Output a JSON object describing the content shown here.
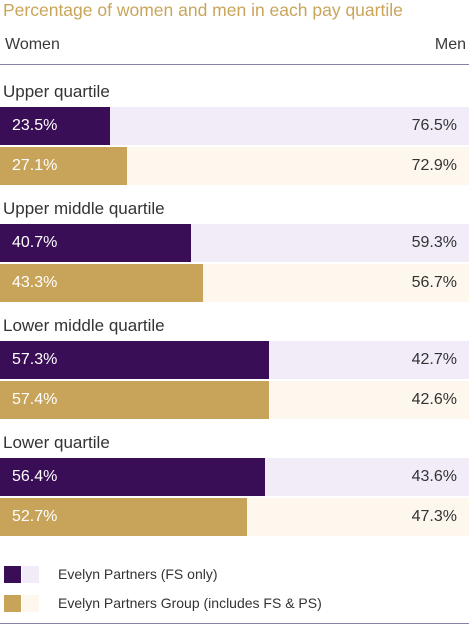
{
  "title": "Percentage of women and men in each pay quartile",
  "headers": {
    "women": "Women",
    "men": "Men"
  },
  "colors": {
    "fs_dark": "#3a0e57",
    "fs_light": "#f2ecf9",
    "group_dark": "#c8a35a",
    "group_light": "#fdf7ee",
    "title": "#c9a55a"
  },
  "chart_data": {
    "type": "bar",
    "orientation": "horizontal-stacked-100",
    "title": "Percentage of women and men in each pay quartile",
    "categories": [
      "Upper quartile",
      "Upper middle quartile",
      "Lower middle quartile",
      "Lower quartile"
    ],
    "series": [
      {
        "name": "Evelyn Partners (FS only)",
        "women": [
          23.5,
          40.7,
          57.3,
          56.4
        ],
        "men": [
          76.5,
          59.3,
          42.7,
          43.6
        ],
        "women_labels": [
          "23.5%",
          "40.7%",
          "57.3%",
          "56.4%"
        ],
        "men_labels": [
          "76.5%",
          "59.3%",
          "42.7%",
          "43.6%"
        ]
      },
      {
        "name": "Evelyn Partners Group (includes FS & PS)",
        "women": [
          27.1,
          43.3,
          57.4,
          52.7
        ],
        "men": [
          72.9,
          56.7,
          42.6,
          47.3
        ],
        "women_labels": [
          "27.1%",
          "43.3%",
          "57.4%",
          "52.7%"
        ],
        "men_labels": [
          "72.9%",
          "56.7%",
          "42.6%",
          "47.3%"
        ]
      }
    ],
    "xlim": [
      0,
      100
    ]
  }
}
